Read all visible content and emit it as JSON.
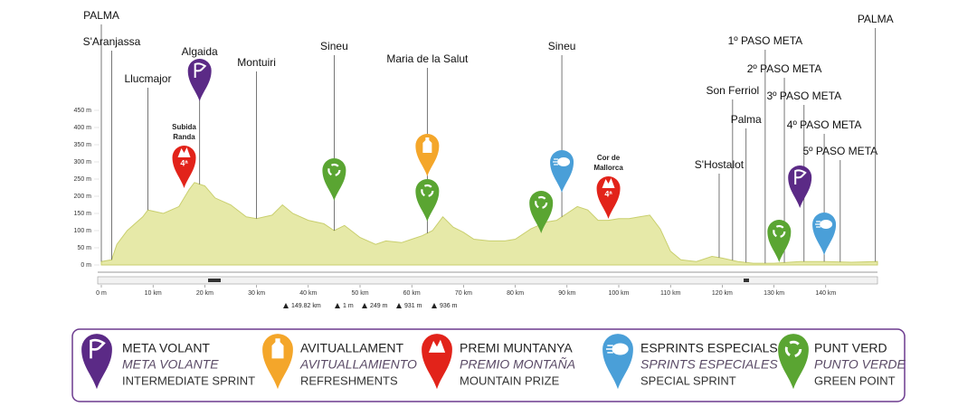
{
  "chart_data": {
    "type": "area",
    "x": [
      0,
      2,
      3,
      5,
      8,
      9,
      12,
      15,
      17,
      18,
      20,
      22,
      25,
      28,
      30,
      33,
      35,
      37,
      40,
      43,
      45,
      47,
      50,
      53,
      55,
      58,
      60,
      62,
      64,
      66,
      68,
      70,
      72,
      75,
      78,
      80,
      83,
      86,
      88,
      90,
      92,
      94,
      96,
      98,
      100,
      102,
      104,
      106,
      108,
      110,
      112,
      115,
      118,
      120,
      123,
      126,
      130,
      135,
      140,
      145,
      150
    ],
    "values": [
      10,
      15,
      60,
      100,
      140,
      160,
      150,
      170,
      220,
      240,
      230,
      195,
      175,
      140,
      135,
      145,
      175,
      150,
      130,
      120,
      100,
      115,
      80,
      60,
      70,
      65,
      75,
      85,
      100,
      140,
      110,
      95,
      75,
      70,
      70,
      75,
      105,
      125,
      130,
      150,
      170,
      160,
      130,
      130,
      135,
      135,
      140,
      145,
      105,
      40,
      15,
      10,
      25,
      20,
      10,
      5,
      5,
      10,
      10,
      8,
      10
    ],
    "color": "#e6e9a8",
    "xlim": [
      0,
      150
    ],
    "ylim": [
      0,
      450
    ],
    "xticks": [
      {
        "value": 0,
        "label": "0 m"
      },
      {
        "value": 10,
        "label": "10 km"
      },
      {
        "value": 20,
        "label": "20 km"
      },
      {
        "value": 30,
        "label": "30 km"
      },
      {
        "value": 40,
        "label": "40 km"
      },
      {
        "value": 50,
        "label": "50 km"
      },
      {
        "value": 60,
        "label": "60 km"
      },
      {
        "value": 70,
        "label": "70 km"
      },
      {
        "value": 80,
        "label": "80 km"
      },
      {
        "value": 90,
        "label": "90 km"
      },
      {
        "value": 100,
        "label": "100 km"
      },
      {
        "value": 110,
        "label": "110 km"
      },
      {
        "value": 120,
        "label": "120 km"
      },
      {
        "value": 130,
        "label": "130 km"
      },
      {
        "value": 140,
        "label": "140 km"
      }
    ],
    "yticks": [
      {
        "value": 0,
        "label": "0 m"
      },
      {
        "value": 50,
        "label": "50 m"
      },
      {
        "value": 100,
        "label": "100 m"
      },
      {
        "value": 150,
        "label": "150 m"
      },
      {
        "value": 200,
        "label": "200 m"
      },
      {
        "value": 250,
        "label": "250 m"
      },
      {
        "value": 300,
        "label": "300 m"
      },
      {
        "value": 350,
        "label": "350 m"
      },
      {
        "value": 400,
        "label": "400 m"
      },
      {
        "value": 450,
        "label": "450 m"
      }
    ],
    "annotations": [
      {
        "label": "PALMA",
        "x": 0
      },
      {
        "label": "S'Aranjassa",
        "x": 2
      },
      {
        "label": "Llucmajor",
        "x": 9
      },
      {
        "label": "Algaida",
        "x": 19
      },
      {
        "label": "Montuiri",
        "x": 30
      },
      {
        "label": "Sineu",
        "x": 45
      },
      {
        "label": "Maria de la Salut",
        "x": 63
      },
      {
        "label": "Sineu",
        "x": 89
      },
      {
        "label": "S'Hostalot",
        "x": 119.4
      },
      {
        "label": "Son Ferriol",
        "x": 122
      },
      {
        "label": "Palma",
        "x": 124.6
      },
      {
        "label": "1º PASO META",
        "x": 128.3
      },
      {
        "label": "2º PASO META",
        "x": 132
      },
      {
        "label": "3º PASO META",
        "x": 135.8
      },
      {
        "label": "4º PASO META",
        "x": 139.7
      },
      {
        "label": "5º PASO META",
        "x": 142.8
      },
      {
        "label": "PALMA",
        "x": 149.6
      }
    ],
    "stats": [
      "149.82 km",
      "1 m",
      "249 m",
      "931 m",
      "936 m"
    ],
    "legend": [
      {
        "name": "META VOLANT",
        "name_es": "META VOLANTE",
        "name_en": "INTERMEDIATE SPRINT",
        "color": "#5b2a86",
        "pins": [
          {
            "x": 19
          },
          {
            "x": 135
          }
        ]
      },
      {
        "name": "AVITUALLAMENT",
        "name_es": "AVITUALLAMIENTO",
        "name_en": "REFRESHMENTS",
        "color": "#f4a62a",
        "pins": [
          {
            "x": 63
          }
        ]
      },
      {
        "name": "PREMI MUNTANYA",
        "name_es": "PREMIO MONTAÑA",
        "name_en": "MOUNTAIN PRIZE",
        "color": "#e2231a",
        "pins": [
          {
            "x": 16,
            "label": "4ª",
            "title": [
              "Subida",
              "Randa"
            ]
          },
          {
            "x": 98,
            "label": "4ª",
            "title": [
              "Cor de",
              "Mallorca"
            ]
          }
        ]
      },
      {
        "name": "ESPRINTS ESPECIALS",
        "name_es": "SPRINTS ESPECIALES",
        "name_en": "SPECIAL SPRINT",
        "color": "#4a9fd8",
        "pins": [
          {
            "x": 89
          },
          {
            "x": 139.7
          }
        ]
      },
      {
        "name": "PUNT VERD",
        "name_es": "PUNTO VERDE",
        "name_en": "GREEN POINT",
        "color": "#5aa532",
        "pins": [
          {
            "x": 45
          },
          {
            "x": 63
          },
          {
            "x": 85
          },
          {
            "x": 131
          }
        ]
      }
    ]
  }
}
